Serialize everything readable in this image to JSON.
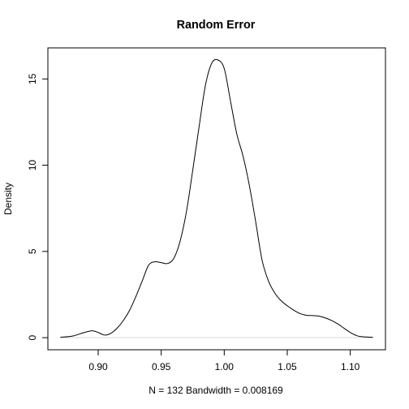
{
  "chart_data": {
    "type": "line",
    "title": "Random Error",
    "xlabel": "N = 132   Bandwidth = 0.008169",
    "ylabel": "Density",
    "xlim": [
      0.87,
      1.118
    ],
    "ylim": [
      0,
      16.1
    ],
    "x_ticks": [
      0.9,
      0.95,
      1.0,
      1.05,
      1.1
    ],
    "x_tick_labels": [
      "0.90",
      "0.95",
      "1.00",
      "1.05",
      "1.10"
    ],
    "y_ticks": [
      0,
      5,
      10,
      15
    ],
    "y_tick_labels": [
      "0",
      "5",
      "10",
      "15"
    ],
    "grid": false,
    "baseline": true,
    "series": [
      {
        "x": [
          0.87,
          0.88,
          0.888,
          0.895,
          0.9,
          0.905,
          0.91,
          0.915,
          0.92,
          0.925,
          0.93,
          0.935,
          0.94,
          0.945,
          0.95,
          0.955,
          0.96,
          0.965,
          0.97,
          0.975,
          0.98,
          0.985,
          0.99,
          0.995,
          1.0,
          1.005,
          1.01,
          1.015,
          1.02,
          1.025,
          1.03,
          1.035,
          1.04,
          1.045,
          1.05,
          1.055,
          1.06,
          1.065,
          1.07,
          1.075,
          1.08,
          1.085,
          1.09,
          1.095,
          1.1,
          1.105,
          1.11,
          1.118
        ],
        "y": [
          0.02,
          0.1,
          0.28,
          0.4,
          0.3,
          0.15,
          0.25,
          0.55,
          1.0,
          1.6,
          2.4,
          3.3,
          4.2,
          4.4,
          4.35,
          4.3,
          4.6,
          5.6,
          7.3,
          9.7,
          12.2,
          14.6,
          15.9,
          16.1,
          15.6,
          13.7,
          11.8,
          10.5,
          8.8,
          6.7,
          4.5,
          3.3,
          2.6,
          2.15,
          1.85,
          1.6,
          1.4,
          1.3,
          1.28,
          1.25,
          1.15,
          1.0,
          0.8,
          0.55,
          0.3,
          0.12,
          0.05,
          0.02
        ]
      }
    ]
  }
}
